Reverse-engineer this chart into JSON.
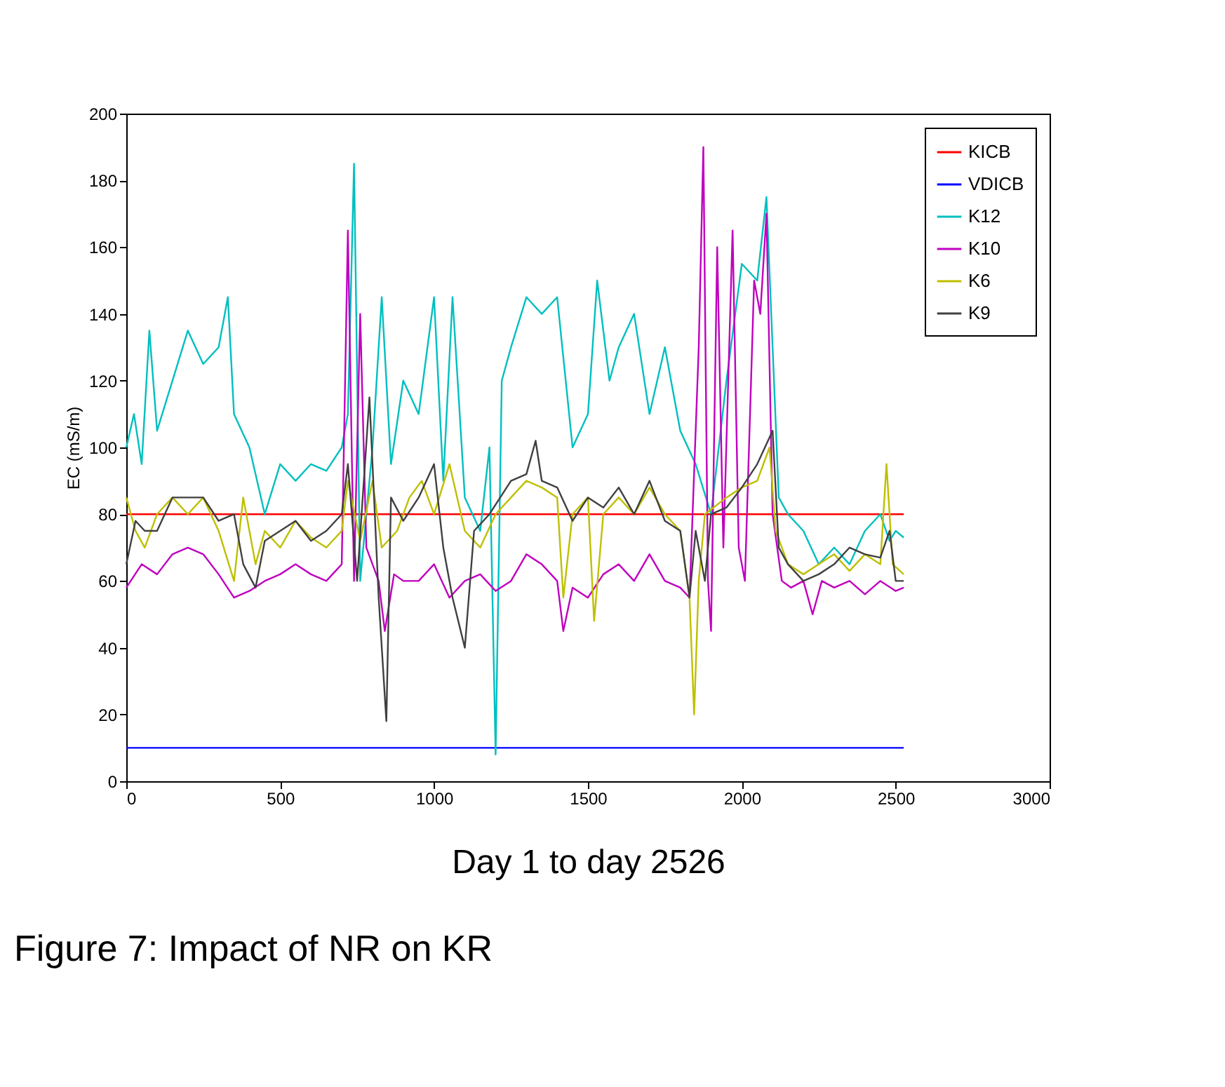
{
  "chart_data": {
    "type": "line",
    "xlabel": "Day 1 to day 2526",
    "ylabel": "EC (mS/m)",
    "annotations": [
      "Figure 7: Impact of NR on KR"
    ],
    "xlim": [
      0,
      3000
    ],
    "xticks": [
      0,
      500,
      1000,
      1500,
      2000,
      2500,
      3000
    ],
    "ylim": [
      0,
      200
    ],
    "yticks": [
      0,
      20,
      40,
      60,
      80,
      100,
      120,
      140,
      160,
      180,
      200
    ],
    "grid": false,
    "legend": "top right",
    "marker": "none",
    "line_style": "solid",
    "series": [
      {
        "name": "KICB",
        "color": "#ff0000",
        "x": [
          0,
          2526
        ],
        "values": [
          80,
          80
        ]
      },
      {
        "name": "VDICB",
        "color": "#0000ff",
        "x": [
          0,
          2526
        ],
        "values": [
          10,
          10
        ]
      },
      {
        "name": "K12",
        "color": "#00bfbf",
        "x": [
          0,
          25,
          50,
          75,
          100,
          150,
          200,
          250,
          300,
          330,
          350,
          400,
          450,
          500,
          550,
          600,
          650,
          700,
          720,
          740,
          760,
          800,
          830,
          860,
          900,
          950,
          1000,
          1030,
          1060,
          1100,
          1150,
          1180,
          1200,
          1220,
          1250,
          1300,
          1350,
          1400,
          1450,
          1500,
          1530,
          1570,
          1600,
          1650,
          1700,
          1750,
          1800,
          1850,
          1900,
          1950,
          2000,
          2050,
          2080,
          2100,
          2120,
          2150,
          2200,
          2250,
          2300,
          2350,
          2400,
          2450,
          2480,
          2500,
          2526
        ],
        "values": [
          100,
          110,
          95,
          135,
          105,
          120,
          135,
          125,
          130,
          145,
          110,
          100,
          80,
          95,
          90,
          95,
          93,
          100,
          110,
          185,
          60,
          100,
          145,
          95,
          120,
          110,
          145,
          90,
          145,
          85,
          75,
          100,
          8,
          120,
          130,
          145,
          140,
          145,
          100,
          110,
          150,
          120,
          130,
          140,
          110,
          130,
          105,
          95,
          80,
          120,
          155,
          150,
          175,
          130,
          85,
          80,
          75,
          65,
          70,
          65,
          75,
          80,
          72,
          75,
          73
        ]
      },
      {
        "name": "K10",
        "color": "#bf00bf",
        "x": [
          0,
          50,
          100,
          150,
          200,
          250,
          300,
          350,
          400,
          450,
          500,
          550,
          600,
          650,
          700,
          720,
          740,
          760,
          780,
          820,
          840,
          870,
          900,
          950,
          1000,
          1050,
          1100,
          1150,
          1200,
          1250,
          1300,
          1350,
          1400,
          1420,
          1450,
          1500,
          1550,
          1600,
          1650,
          1700,
          1750,
          1800,
          1830,
          1860,
          1875,
          1890,
          1900,
          1920,
          1940,
          1970,
          1990,
          2010,
          2040,
          2060,
          2080,
          2100,
          2130,
          2160,
          2200,
          2230,
          2260,
          2300,
          2350,
          2400,
          2450,
          2500,
          2526
        ],
        "values": [
          58,
          65,
          62,
          68,
          70,
          68,
          62,
          55,
          57,
          60,
          62,
          65,
          62,
          60,
          65,
          165,
          60,
          140,
          70,
          60,
          45,
          62,
          60,
          60,
          65,
          55,
          60,
          62,
          57,
          60,
          68,
          65,
          60,
          45,
          58,
          55,
          62,
          65,
          60,
          68,
          60,
          58,
          55,
          130,
          190,
          60,
          45,
          160,
          70,
          165,
          70,
          60,
          150,
          140,
          170,
          80,
          60,
          58,
          60,
          50,
          60,
          58,
          60,
          56,
          60,
          57,
          58
        ]
      },
      {
        "name": "K6",
        "color": "#bfbf00",
        "x": [
          0,
          30,
          60,
          100,
          150,
          200,
          250,
          300,
          350,
          380,
          420,
          450,
          500,
          550,
          600,
          650,
          700,
          720,
          760,
          800,
          830,
          880,
          920,
          960,
          1000,
          1050,
          1100,
          1150,
          1200,
          1250,
          1300,
          1350,
          1400,
          1420,
          1450,
          1500,
          1520,
          1550,
          1600,
          1650,
          1700,
          1750,
          1800,
          1830,
          1845,
          1860,
          1880,
          1950,
          2000,
          2050,
          2090,
          2110,
          2150,
          2200,
          2250,
          2300,
          2350,
          2400,
          2450,
          2470,
          2490,
          2526
        ],
        "values": [
          85,
          75,
          70,
          80,
          85,
          80,
          85,
          75,
          60,
          85,
          65,
          75,
          70,
          78,
          73,
          70,
          75,
          90,
          72,
          90,
          70,
          75,
          85,
          90,
          80,
          95,
          75,
          70,
          80,
          85,
          90,
          88,
          85,
          55,
          80,
          85,
          48,
          80,
          85,
          80,
          88,
          80,
          75,
          55,
          20,
          60,
          80,
          85,
          88,
          90,
          100,
          75,
          65,
          62,
          65,
          68,
          63,
          68,
          65,
          95,
          65,
          62
        ]
      },
      {
        "name": "K9",
        "color": "#404040",
        "x": [
          0,
          30,
          60,
          100,
          150,
          200,
          250,
          300,
          350,
          380,
          420,
          450,
          500,
          550,
          600,
          650,
          700,
          720,
          750,
          790,
          820,
          845,
          860,
          900,
          950,
          1000,
          1030,
          1060,
          1100,
          1130,
          1180,
          1250,
          1300,
          1330,
          1350,
          1400,
          1450,
          1500,
          1550,
          1600,
          1650,
          1700,
          1750,
          1800,
          1830,
          1850,
          1880,
          1900,
          1950,
          2000,
          2050,
          2100,
          2120,
          2150,
          2200,
          2250,
          2300,
          2350,
          2400,
          2450,
          2480,
          2500,
          2526
        ],
        "values": [
          65,
          78,
          75,
          75,
          85,
          85,
          85,
          78,
          80,
          65,
          58,
          72,
          75,
          78,
          72,
          75,
          80,
          95,
          60,
          115,
          55,
          18,
          85,
          78,
          85,
          95,
          70,
          55,
          40,
          75,
          80,
          90,
          92,
          102,
          90,
          88,
          78,
          85,
          82,
          88,
          80,
          90,
          78,
          75,
          55,
          75,
          60,
          80,
          82,
          88,
          95,
          105,
          70,
          65,
          60,
          62,
          65,
          70,
          68,
          67,
          75,
          60,
          60
        ]
      }
    ]
  }
}
